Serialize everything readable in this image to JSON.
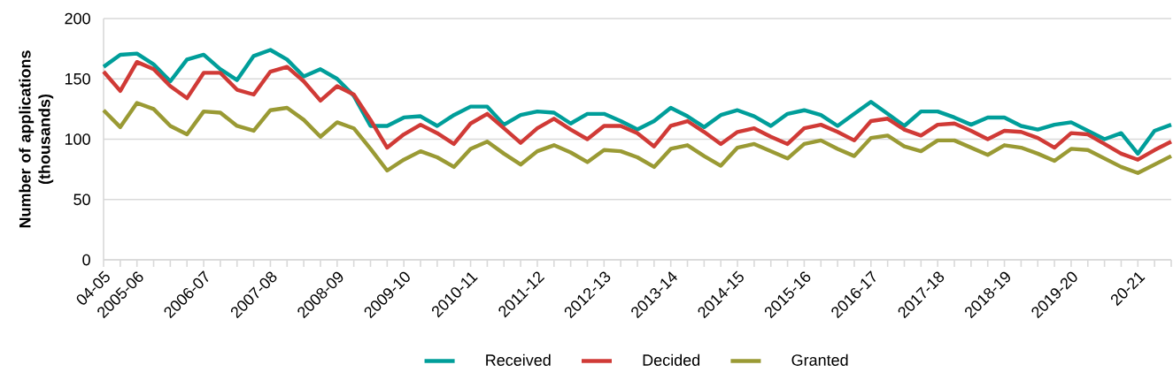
{
  "chart_data": {
    "type": "line",
    "ylabel": "Number of applications (thousands)",
    "categories": [
      "04-05",
      null,
      "2005-06",
      null,
      null,
      null,
      "2006-07",
      null,
      null,
      null,
      "2007-08",
      null,
      null,
      null,
      "2008-09",
      null,
      null,
      null,
      "2009-10",
      null,
      null,
      null,
      "2010-11",
      null,
      null,
      null,
      "2011-12",
      null,
      null,
      null,
      "2012-13",
      null,
      null,
      null,
      "2013-14",
      null,
      null,
      null,
      "2014-15",
      null,
      null,
      null,
      "2015-16",
      null,
      null,
      null,
      "2016-17",
      null,
      null,
      null,
      "2017-18",
      null,
      null,
      null,
      "2018-19",
      null,
      null,
      null,
      "2019-20",
      null,
      null,
      null,
      "20-21",
      null,
      null
    ],
    "series": [
      {
        "name": "Received",
        "color": "#009e9a",
        "values": [
          160,
          170,
          171,
          162,
          148,
          166,
          170,
          158,
          149,
          169,
          174,
          166,
          152,
          158,
          150,
          136,
          111,
          111,
          118,
          119,
          111,
          120,
          127,
          127,
          112,
          120,
          123,
          122,
          113,
          121,
          121,
          115,
          108,
          115,
          126,
          119,
          110,
          120,
          124,
          119,
          111,
          121,
          124,
          120,
          111,
          121,
          131,
          121,
          111,
          123,
          123,
          118,
          112,
          118,
          118,
          111,
          108,
          112,
          114,
          107,
          100,
          105,
          88,
          107,
          112
        ]
      },
      {
        "name": "Decided",
        "color": "#d03a36",
        "values": [
          156,
          140,
          164,
          158,
          144,
          134,
          155,
          155,
          141,
          137,
          156,
          160,
          148,
          132,
          144,
          137,
          116,
          93,
          104,
          112,
          105,
          96,
          113,
          121,
          109,
          97,
          109,
          117,
          108,
          100,
          111,
          111,
          105,
          94,
          111,
          115,
          106,
          96,
          106,
          109,
          102,
          96,
          109,
          112,
          106,
          99,
          115,
          117,
          108,
          103,
          112,
          113,
          107,
          100,
          107,
          106,
          101,
          93,
          105,
          104,
          96,
          88,
          83,
          91,
          98
        ]
      },
      {
        "name": "Granted",
        "color": "#9a9a34",
        "values": [
          124,
          110,
          130,
          125,
          111,
          104,
          123,
          122,
          111,
          107,
          124,
          126,
          116,
          102,
          114,
          109,
          92,
          74,
          83,
          90,
          85,
          77,
          92,
          98,
          88,
          79,
          90,
          95,
          89,
          81,
          91,
          90,
          85,
          77,
          92,
          95,
          86,
          78,
          93,
          96,
          90,
          84,
          96,
          99,
          92,
          86,
          101,
          103,
          94,
          90,
          99,
          99,
          93,
          87,
          95,
          93,
          88,
          82,
          92,
          91,
          84,
          77,
          72,
          79,
          86
        ]
      }
    ],
    "ylim": [
      0,
      200
    ],
    "yticks": [
      0,
      50,
      100,
      150,
      200
    ],
    "grid": "y",
    "legend": "bottom",
    "line_style": "solid"
  }
}
